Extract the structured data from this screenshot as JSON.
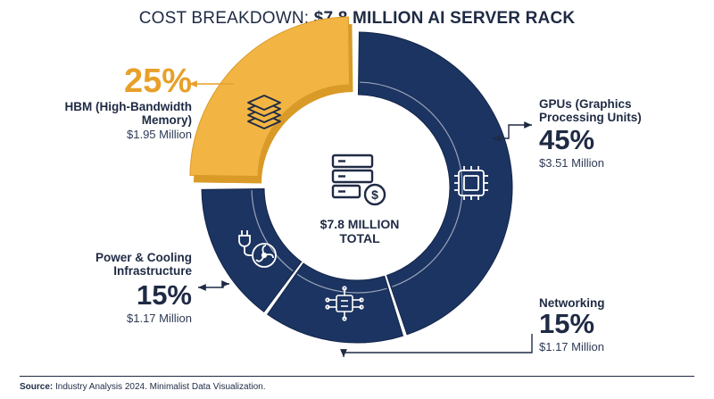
{
  "header": {
    "title_light": "COST BREAKDOWN: ",
    "title_bold": "$7.8 MILLION AI SERVER RACK"
  },
  "center": {
    "line1": "$7.8 MILLION",
    "line2": "TOTAL"
  },
  "footer": {
    "source_label": "Source:",
    "source_text": " Industry Analysis 2024. Minimalist Data Visualization."
  },
  "colors": {
    "navy": "#1c3461",
    "navy_dark": "#13254a",
    "gold": "#f2b543",
    "gold_dark": "#d99a28",
    "text": "#1f2a44"
  },
  "chart_data": {
    "type": "pie",
    "variant": "donut",
    "title": "COST BREAKDOWN: $7.8 MILLION AI SERVER RACK",
    "total": "$7.8 MILLION TOTAL",
    "slices": [
      {
        "key": "gpu",
        "label": "GPUs (Graphics Processing Units)",
        "percent": 45,
        "value_label": "$3.51 Million",
        "value_millions": 3.51,
        "color": "#1c3461",
        "icon": "chip-icon"
      },
      {
        "key": "net",
        "label": "Networking",
        "percent": 15,
        "value_label": "$1.17 Million",
        "value_millions": 1.17,
        "color": "#1c3461",
        "icon": "network-icon"
      },
      {
        "key": "pwr",
        "label": "Power & Cooling Infrastructure",
        "percent": 15,
        "value_label": "$1.17 Million",
        "value_millions": 1.17,
        "color": "#1c3461",
        "icon": "power-cooling-icon"
      },
      {
        "key": "hbm",
        "label": "HBM (High-Bandwidth Memory)",
        "percent": 25,
        "value_label": "$1.95 Million",
        "value_millions": 1.95,
        "color": "#f2b543",
        "icon": "memory-stack-icon",
        "highlighted": true
      }
    ]
  }
}
